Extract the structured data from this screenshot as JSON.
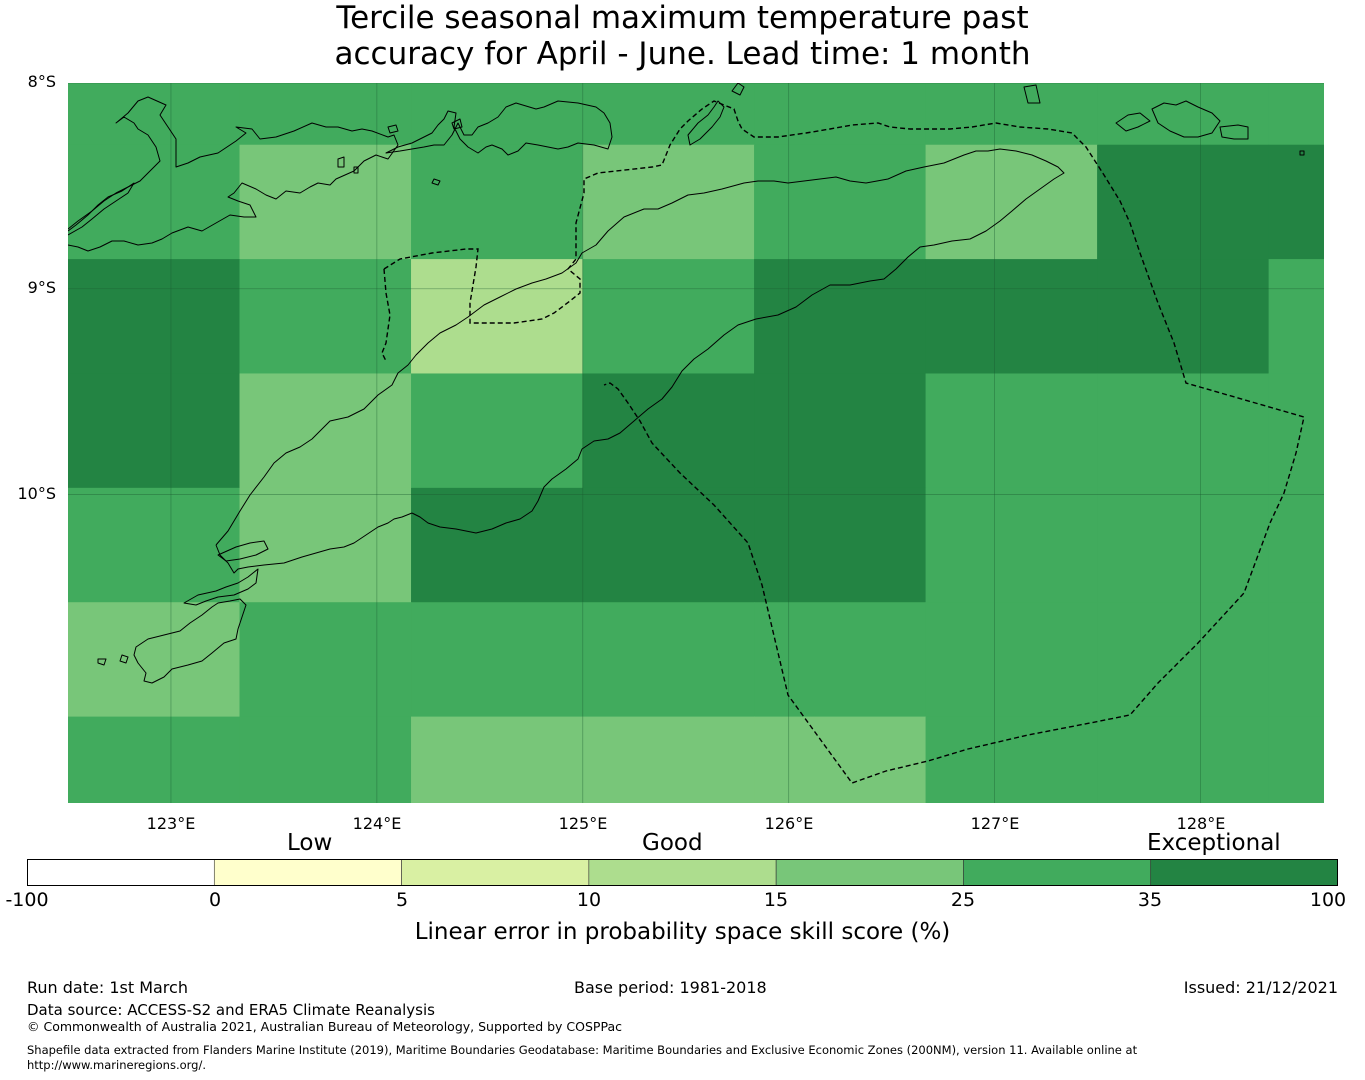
{
  "title": {
    "line1": "Tercile seasonal maximum temperature past",
    "line2": "accuracy for April - June. Lead time: 1 month"
  },
  "map": {
    "lat_labels": [
      "8°S",
      "9°S",
      "10°S"
    ],
    "lon_labels": [
      "123°E",
      "124°E",
      "125°E",
      "126°E",
      "127°E",
      "128°E"
    ],
    "lon_range": [
      122.5,
      128.6
    ],
    "lat_range": [
      -11.5,
      -8.0
    ],
    "grid_lons": [
      123,
      124,
      125,
      126,
      127,
      128
    ],
    "grid_lats": [
      -8,
      -9,
      -10
    ],
    "cell_size_deg": [
      0.833,
      0.556
    ],
    "colors": {
      "c15_25": "#78c679",
      "c25_35": "#41ab5d",
      "c35_100": "#238443",
      "c10_15": "#addd8e"
    },
    "grid": [
      [
        "c25_35",
        "c25_35",
        "c25_35",
        "c25_35",
        "c25_35",
        "c25_35",
        "c25_35",
        "c25_35"
      ],
      [
        "c25_35",
        "c15_25",
        "c25_35",
        "c15_25",
        "c25_35",
        "c15_25",
        "c35_100",
        "c35_100"
      ],
      [
        "c35_100",
        "c25_35",
        "c10_15",
        "c25_35",
        "c35_100",
        "c35_100",
        "c35_100",
        "c25_35"
      ],
      [
        "c35_100",
        "c15_25",
        "c25_35",
        "c35_100",
        "c35_100",
        "c25_35",
        "c25_35",
        "c25_35"
      ],
      [
        "c25_35",
        "c15_25",
        "c35_100",
        "c35_100",
        "c35_100",
        "c25_35",
        "c25_35",
        "c25_35"
      ],
      [
        "c15_25",
        "c25_35",
        "c25_35",
        "c25_35",
        "c25_35",
        "c25_35",
        "c25_35",
        "c25_35"
      ],
      [
        "c25_35",
        "c25_35",
        "c15_25",
        "c15_25",
        "c15_25",
        "c25_35",
        "c25_35",
        "c25_35"
      ]
    ]
  },
  "colorbar": {
    "category_labels": [
      "Low",
      "Good",
      "Exceptional"
    ],
    "bins": [
      {
        "from": "-100",
        "to": "0",
        "color": "#ffffff"
      },
      {
        "from": "0",
        "to": "5",
        "color": "#ffffcc"
      },
      {
        "from": "5",
        "to": "10",
        "color": "#d9f0a3"
      },
      {
        "from": "10",
        "to": "15",
        "color": "#addd8e"
      },
      {
        "from": "15",
        "to": "25",
        "color": "#78c679"
      },
      {
        "from": "25",
        "to": "35",
        "color": "#41ab5d"
      },
      {
        "from": "35",
        "to": "100",
        "color": "#238443"
      }
    ],
    "tick_labels": [
      "-100",
      "0",
      "5",
      "10",
      "15",
      "25",
      "35",
      "100"
    ],
    "title": "Linear error in probability space skill score (%)"
  },
  "footer": {
    "run_date": "Run date: 1st March",
    "base_period": "Base period: 1981-2018",
    "issued": "Issued: 21/12/2021",
    "data_source": "Data source: ACCESS-S2 and ERA5 Climate Reanalysis",
    "copyright": "© Commonwealth of Australia 2021, Australian Bureau of Meteorology, Supported by COSPPac",
    "shapefile_line1": "Shapefile data extracted from Flanders Marine Institute (2019), Maritime Boundaries Geodatabase: Maritime Boundaries and Exclusive Economic Zones (200NM), version 11. Available online at",
    "shapefile_line2": "http://www.marineregions.org/."
  }
}
